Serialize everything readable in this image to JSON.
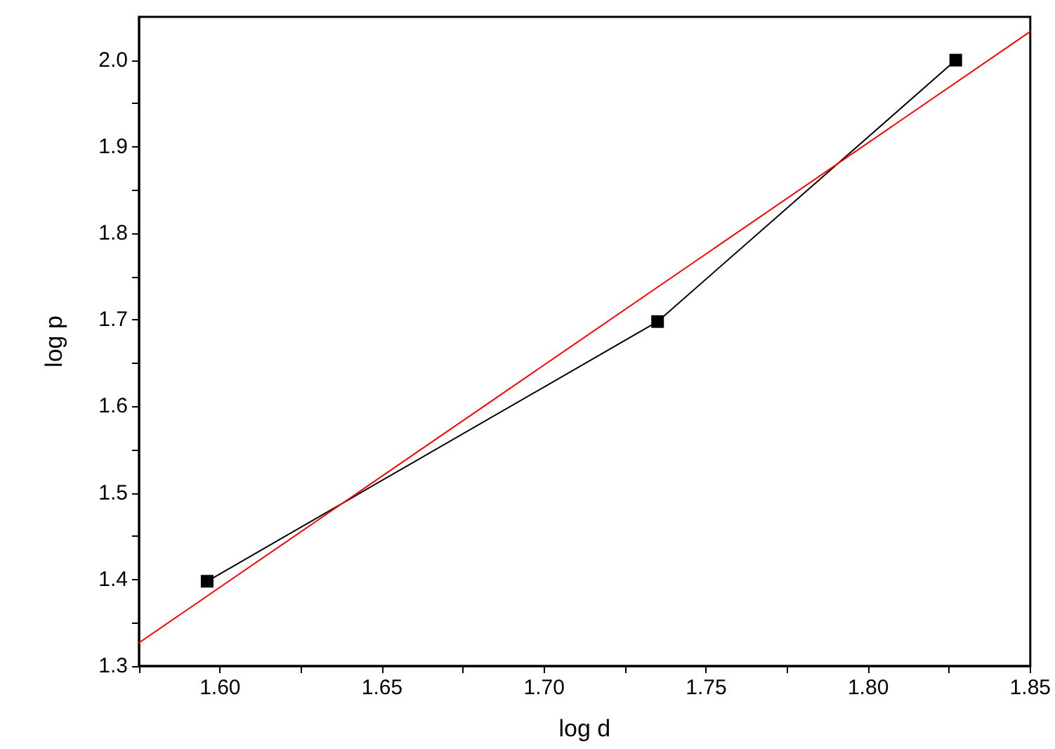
{
  "chart_data": {
    "type": "line",
    "xlabel": "log d",
    "ylabel": "log p",
    "xlim": [
      1.575,
      1.85
    ],
    "ylim": [
      1.3,
      2.05
    ],
    "xticks": [
      {
        "value": 1.575,
        "label": null
      },
      {
        "value": 1.6,
        "label": "1.60"
      },
      {
        "value": 1.625,
        "label": null
      },
      {
        "value": 1.65,
        "label": "1.65"
      },
      {
        "value": 1.675,
        "label": null
      },
      {
        "value": 1.7,
        "label": "1.70"
      },
      {
        "value": 1.725,
        "label": null
      },
      {
        "value": 1.75,
        "label": "1.75"
      },
      {
        "value": 1.775,
        "label": null
      },
      {
        "value": 1.8,
        "label": "1.80"
      },
      {
        "value": 1.825,
        "label": null
      },
      {
        "value": 1.85,
        "label": "1.85"
      }
    ],
    "yticks": [
      1.3,
      {
        "value": 1.35,
        "label": null
      },
      1.4,
      {
        "value": 1.45,
        "label": null
      },
      1.5,
      {
        "value": 1.55,
        "label": null
      },
      1.6,
      {
        "value": 1.65,
        "label": null
      },
      1.7,
      {
        "value": 1.75,
        "label": null
      },
      1.8,
      {
        "value": 1.85,
        "label": null
      },
      1.9,
      {
        "value": 1.95,
        "label": null
      },
      {
        "value": 2.0,
        "label": "2.0"
      }
    ],
    "grid": false,
    "series": [
      {
        "color": "#000000",
        "marker": "square",
        "x": [
          1.596,
          1.735,
          1.827
        ],
        "values": [
          1.398,
          1.698,
          2.0
        ]
      },
      {
        "color": "#ff0000",
        "marker": "none",
        "x": [
          1.575,
          1.85
        ],
        "values": [
          1.327,
          2.033
        ]
      }
    ]
  }
}
